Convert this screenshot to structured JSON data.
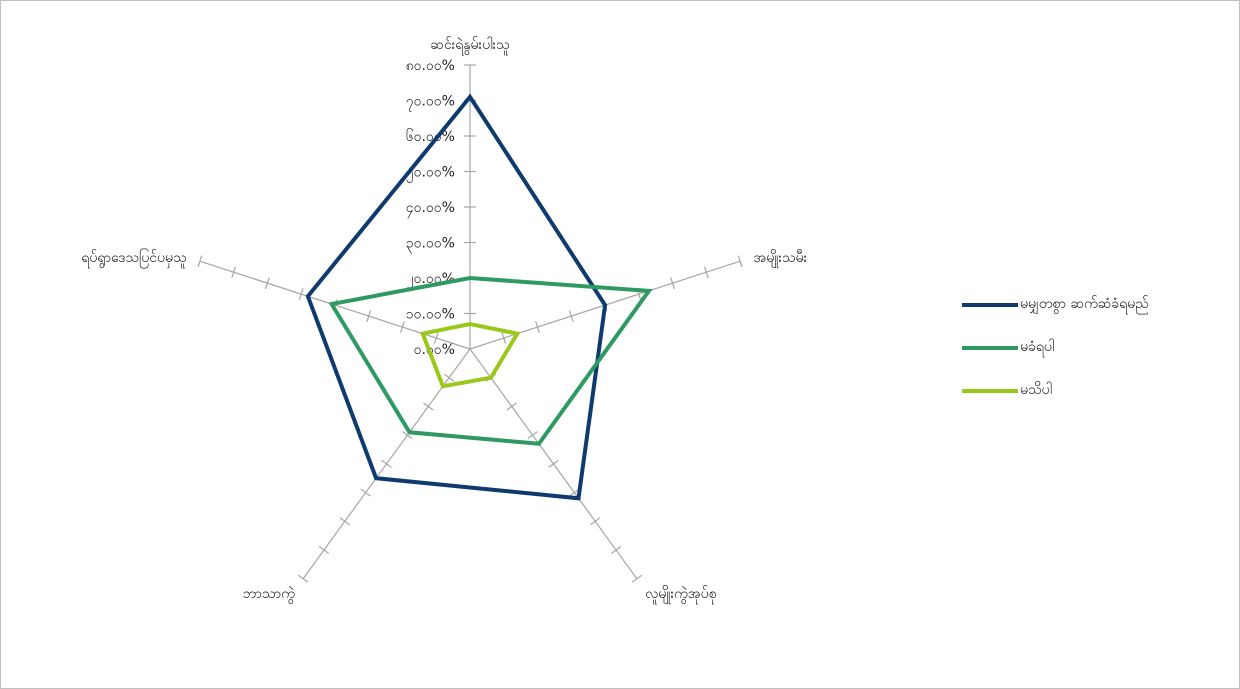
{
  "chart_data": {
    "type": "radar",
    "categories": [
      "ဆင်းရဲနွမ်းပါးသူ",
      "အမျိုးသမီး",
      "လူမျိုးကွဲအုပ်စု",
      "ဘာသာကွဲ",
      "ရပ်ရွာဒေသပြင်ပမှသူ"
    ],
    "tick_labels": [
      "၀.၀၀%",
      "၁၀.၀၀%",
      "၂၀.၀၀%",
      "၃၀.၀၀%",
      "၄၀.၀၀%",
      "၅၀.၀၀%",
      "၆၀.၀၀%",
      "၇၀.၀၀%",
      "၈၀.၀၀%"
    ],
    "rmax": 80,
    "series": [
      {
        "name": "မမျှတစွာ ဆက်ဆံခံရမည်",
        "color": "#0e3a6e",
        "values": [
          71,
          40,
          52,
          45,
          48
        ]
      },
      {
        "name": "မခံရပါ",
        "color": "#2e9a62",
        "values": [
          20,
          53,
          33,
          29,
          41
        ]
      },
      {
        "name": "မသိပါ",
        "color": "#9ac81a",
        "values": [
          7,
          14,
          10,
          13,
          14
        ]
      }
    ],
    "legend_position": "right"
  }
}
